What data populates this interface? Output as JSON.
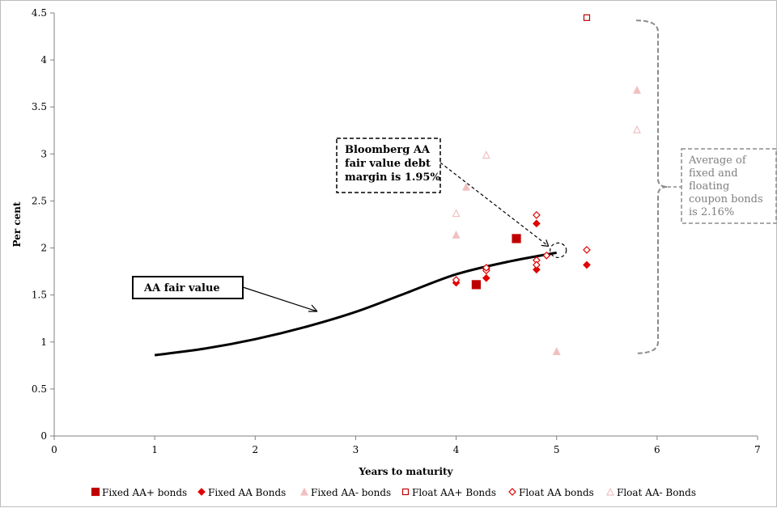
{
  "chart_data": {
    "type": "scatter",
    "title": "",
    "xlabel": "Years to maturity",
    "ylabel": "Per cent",
    "xlim": [
      0,
      7
    ],
    "ylim": [
      0,
      4.5
    ],
    "x_ticks": [
      "0",
      "1",
      "2",
      "3",
      "4",
      "5",
      "6",
      "7"
    ],
    "y_ticks": [
      "0",
      "0.5",
      "1",
      "1.5",
      "2",
      "2.5",
      "3",
      "3.5",
      "4",
      "4.5"
    ],
    "grid": false,
    "legend_position": "bottom",
    "series": [
      {
        "name": "Fixed AA+ bonds",
        "marker": "square-filled",
        "color": "#c00000",
        "points": [
          [
            4.2,
            1.61
          ],
          [
            4.6,
            2.1
          ]
        ]
      },
      {
        "name": "Fixed AA Bonds",
        "marker": "diamond-filled",
        "color": "#e00000",
        "points": [
          [
            4.0,
            1.63
          ],
          [
            4.3,
            1.68
          ],
          [
            4.3,
            1.78
          ],
          [
            4.8,
            2.26
          ],
          [
            4.8,
            1.77
          ],
          [
            5.3,
            1.82
          ]
        ]
      },
      {
        "name": "Fixed AA- bonds",
        "marker": "triangle-filled",
        "color": "#f2c0c0",
        "points": [
          [
            4.0,
            2.14
          ],
          [
            4.1,
            2.65
          ],
          [
            5.0,
            0.9
          ],
          [
            5.8,
            3.68
          ]
        ]
      },
      {
        "name": "Float AA+ Bonds",
        "marker": "square-open",
        "color": "#c00000",
        "points": [
          [
            5.3,
            4.45
          ]
        ]
      },
      {
        "name": "Float AA bonds",
        "marker": "diamond-open",
        "color": "#e00000",
        "points": [
          [
            4.0,
            1.66
          ],
          [
            4.3,
            1.76
          ],
          [
            4.3,
            1.79
          ],
          [
            4.8,
            2.35
          ],
          [
            4.8,
            1.87
          ],
          [
            4.8,
            1.82
          ],
          [
            4.9,
            1.92
          ],
          [
            5.3,
            1.98
          ]
        ]
      },
      {
        "name": "Float AA- Bonds",
        "marker": "triangle-open",
        "color": "#f2c0c0",
        "points": [
          [
            4.0,
            2.37
          ],
          [
            4.3,
            2.99
          ],
          [
            5.8,
            3.26
          ]
        ]
      }
    ],
    "fair_value_curve": {
      "label": "AA fair value",
      "points": [
        [
          1.0,
          0.86
        ],
        [
          1.5,
          0.93
        ],
        [
          2.0,
          1.03
        ],
        [
          2.5,
          1.16
        ],
        [
          3.0,
          1.32
        ],
        [
          3.5,
          1.52
        ],
        [
          4.0,
          1.72
        ],
        [
          4.5,
          1.85
        ],
        [
          5.0,
          1.95
        ]
      ]
    },
    "annotations": {
      "fair_value_box": "AA fair value",
      "bloomberg_box": [
        "Bloomberg AA",
        "fair value debt",
        "margin is 1.95%"
      ],
      "bloomberg_target": [
        5.0,
        1.95
      ],
      "average_box": [
        "Average of",
        "fixed and",
        "floating",
        "coupon bonds",
        "is 2.16%"
      ],
      "bracket_range": [
        0.88,
        4.42
      ]
    }
  }
}
